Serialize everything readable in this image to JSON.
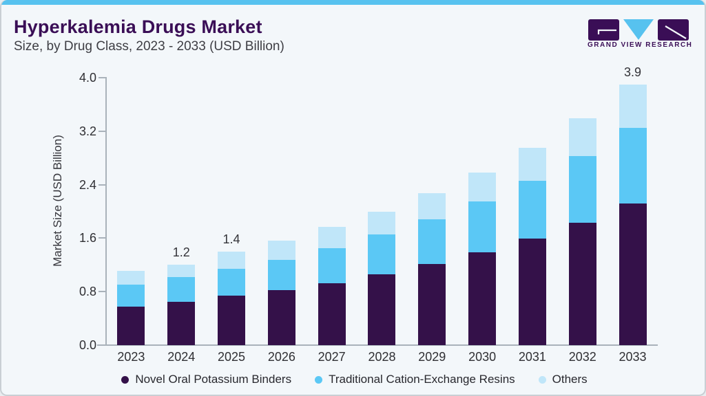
{
  "page": {
    "title": "Hyperkalemia Drugs Market",
    "subtitle": "Size, by Drug Class, 2023 - 2033 (USD Billion)"
  },
  "logo": {
    "name": "grand-view-research-logo",
    "text": "GRAND VIEW RESEARCH"
  },
  "colors": {
    "background": "#F3F7FA",
    "top_accent": "#57C2EF",
    "title_text": "#3A0E56",
    "axis_line": "#A9B2BA",
    "novel": "#341149",
    "traditional": "#5BC8F5",
    "others": "#C0E6F9"
  },
  "chart_data": {
    "type": "bar",
    "stacked": true,
    "title": "Hyperkalemia Drugs Market Size, by Drug Class, 2023 - 2033 (USD Billion)",
    "ylabel": "Market Size (USD Billion)",
    "xlabel": "",
    "ylim": [
      0.0,
      4.0
    ],
    "yticks": [
      "0.0",
      "0.8",
      "1.6",
      "2.4",
      "3.2",
      "4.0"
    ],
    "grid": false,
    "legend_position": "bottom",
    "categories": [
      "2023",
      "2024",
      "2025",
      "2026",
      "2027",
      "2028",
      "2029",
      "2030",
      "2031",
      "2032",
      "2033"
    ],
    "series": [
      {
        "name": "Novel Oral Potassium Binders",
        "color": "#341149",
        "values": [
          0.58,
          0.65,
          0.74,
          0.82,
          0.93,
          1.06,
          1.21,
          1.39,
          1.59,
          1.83,
          2.12
        ]
      },
      {
        "name": "Traditional Cation-Exchange Resins",
        "color": "#5BC8F5",
        "values": [
          0.33,
          0.37,
          0.4,
          0.46,
          0.52,
          0.6,
          0.67,
          0.76,
          0.87,
          1.0,
          1.13
        ]
      },
      {
        "name": "Others",
        "color": "#C0E6F9",
        "values": [
          0.2,
          0.18,
          0.26,
          0.28,
          0.32,
          0.34,
          0.39,
          0.43,
          0.49,
          0.56,
          0.65
        ]
      }
    ],
    "total_labels": [
      "",
      "1.2",
      "1.4",
      "",
      "",
      "",
      "",
      "",
      "",
      "",
      "3.9"
    ]
  }
}
